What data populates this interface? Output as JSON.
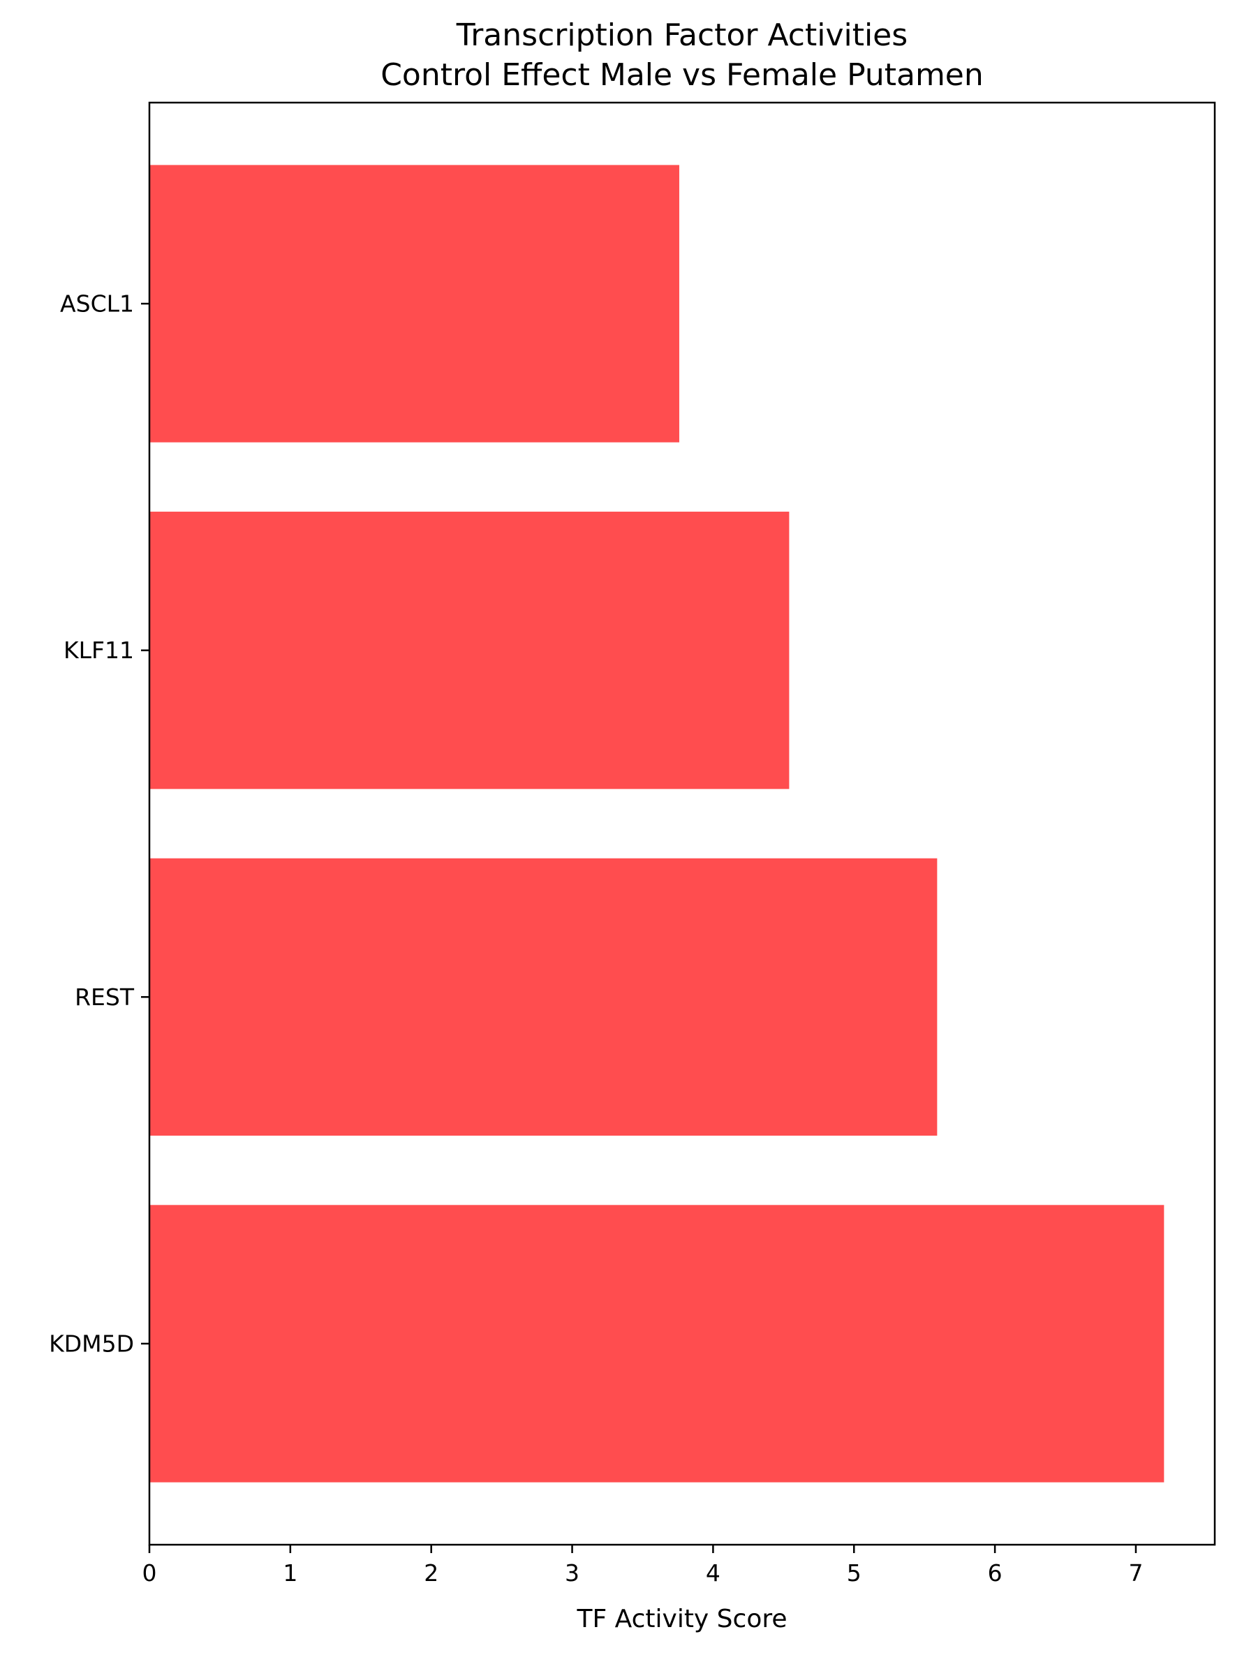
{
  "chart_data": {
    "type": "bar",
    "orientation": "horizontal",
    "title_lines": [
      "Transcription Factor Activities",
      "Control Effect Male vs Female Putamen"
    ],
    "xlabel": "TF Activity Score",
    "ylabel": "",
    "categories": [
      "ASCL1",
      "KLF11",
      "REST",
      "KDM5D"
    ],
    "values": [
      3.76,
      4.54,
      5.59,
      7.2
    ],
    "xlim": [
      0,
      7.56
    ],
    "xticks": [
      0,
      1,
      2,
      3,
      4,
      5,
      6,
      7
    ],
    "bar_color": "#ff4d4f",
    "grid": false,
    "legend": "none"
  }
}
